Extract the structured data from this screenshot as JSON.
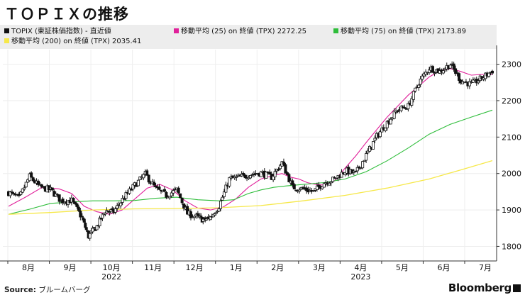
{
  "title": "ＴＯＰＩＸの推移",
  "source_label": "Source:",
  "source_text": "ブルームバーグ",
  "brand": "Bloomberg",
  "colors": {
    "candle_up": "#ffffff",
    "candle_down": "#111111",
    "ma25": "#e0209a",
    "ma75": "#2ebd3a",
    "ma200": "#f6e84a",
    "legend_bg": "#ededed",
    "grid": "#eeeeee",
    "axis": "#333333"
  },
  "chart_data": {
    "type": "line",
    "subtype": "candlestick_with_moving_averages",
    "title": "ＴＯＰＩＸの推移",
    "x_axis": {
      "tick_labels": [
        "8月",
        "9月",
        "10月",
        "11月",
        "12月",
        "1月",
        "2月",
        "3月",
        "4月",
        "5月",
        "6月",
        "7月"
      ],
      "year_labels": [
        "2022",
        "2023"
      ]
    },
    "y_axis": {
      "side": "right",
      "ylim": [
        1760,
        2340
      ],
      "ticks": [
        1800,
        1900,
        2000,
        2100,
        2200,
        2300
      ]
    },
    "grid": true,
    "legend_position": "top",
    "series": [
      {
        "name": "TOPIX (東証株価指数) - 直近値",
        "kind": "candlestick",
        "color": "#111111",
        "points": [
          [
            0.0,
            1948
          ],
          [
            0.5,
            1932
          ],
          [
            1.0,
            1992
          ],
          [
            1.5,
            1962
          ],
          [
            2.0,
            1955
          ],
          [
            2.5,
            1925
          ],
          [
            3.0,
            1926
          ],
          [
            3.5,
            1878
          ],
          [
            3.8,
            1828
          ],
          [
            4.2,
            1855
          ],
          [
            4.6,
            1898
          ],
          [
            5.0,
            1895
          ],
          [
            5.5,
            1935
          ],
          [
            6.0,
            1968
          ],
          [
            6.5,
            1998
          ],
          [
            7.0,
            1958
          ],
          [
            7.5,
            1940
          ],
          [
            8.0,
            1955
          ],
          [
            8.5,
            1890
          ],
          [
            9.0,
            1880
          ],
          [
            9.3,
            1872
          ],
          [
            9.6,
            1880
          ],
          [
            10.0,
            1910
          ],
          [
            10.5,
            1985
          ],
          [
            11.0,
            1990
          ],
          [
            11.5,
            1998
          ],
          [
            12.0,
            2002
          ],
          [
            12.5,
            1990
          ],
          [
            13.0,
            2030
          ],
          [
            13.5,
            1962
          ],
          [
            14.0,
            1958
          ],
          [
            14.5,
            1950
          ],
          [
            15.0,
            1975
          ],
          [
            15.5,
            1985
          ],
          [
            16.0,
            2008
          ],
          [
            16.5,
            2000
          ],
          [
            17.0,
            2050
          ],
          [
            17.5,
            2102
          ],
          [
            18.0,
            2140
          ],
          [
            18.5,
            2175
          ],
          [
            19.0,
            2185
          ],
          [
            19.5,
            2250
          ],
          [
            20.0,
            2290
          ],
          [
            20.5,
            2280
          ],
          [
            21.0,
            2300
          ],
          [
            21.5,
            2255
          ],
          [
            22.0,
            2245
          ],
          [
            22.5,
            2262
          ],
          [
            23.0,
            2282
          ]
        ]
      },
      {
        "name": "移動平均 (25)  on 終値 (TPX)",
        "value": "2272.25",
        "kind": "line",
        "color": "#e0209a",
        "points": [
          [
            0.0,
            1910
          ],
          [
            0.8,
            1935
          ],
          [
            1.6,
            1962
          ],
          [
            2.4,
            1958
          ],
          [
            3.0,
            1945
          ],
          [
            3.6,
            1910
          ],
          [
            4.2,
            1895
          ],
          [
            4.8,
            1888
          ],
          [
            5.4,
            1900
          ],
          [
            6.0,
            1930
          ],
          [
            6.6,
            1960
          ],
          [
            7.2,
            1970
          ],
          [
            7.8,
            1955
          ],
          [
            8.4,
            1925
          ],
          [
            9.0,
            1905
          ],
          [
            9.6,
            1900
          ],
          [
            10.2,
            1908
          ],
          [
            10.8,
            1930
          ],
          [
            11.4,
            1962
          ],
          [
            12.0,
            1985
          ],
          [
            12.6,
            1995
          ],
          [
            13.0,
            2000
          ],
          [
            13.4,
            1990
          ],
          [
            13.8,
            1985
          ],
          [
            14.2,
            1975
          ],
          [
            14.6,
            1970
          ],
          [
            15.0,
            1968
          ],
          [
            15.5,
            1980
          ],
          [
            16.0,
            2015
          ],
          [
            16.5,
            2048
          ],
          [
            17.0,
            2085
          ],
          [
            17.5,
            2120
          ],
          [
            18.0,
            2155
          ],
          [
            18.5,
            2185
          ],
          [
            19.0,
            2215
          ],
          [
            19.5,
            2240
          ],
          [
            20.0,
            2265
          ],
          [
            20.5,
            2282
          ],
          [
            21.0,
            2288
          ],
          [
            21.5,
            2280
          ],
          [
            22.0,
            2270
          ],
          [
            22.5,
            2272
          ],
          [
            23.0,
            2272.25
          ]
        ]
      },
      {
        "name": "移動平均 (75)  on 終値 (TPX)",
        "value": "2173.89",
        "kind": "line",
        "color": "#2ebd3a",
        "points": [
          [
            0.0,
            1888
          ],
          [
            1.0,
            1902
          ],
          [
            2.0,
            1918
          ],
          [
            3.0,
            1922
          ],
          [
            4.0,
            1925
          ],
          [
            5.0,
            1925
          ],
          [
            6.0,
            1926
          ],
          [
            7.0,
            1932
          ],
          [
            8.0,
            1935
          ],
          [
            9.0,
            1928
          ],
          [
            10.0,
            1925
          ],
          [
            10.7,
            1928
          ],
          [
            11.4,
            1945
          ],
          [
            12.0,
            1955
          ],
          [
            12.6,
            1962
          ],
          [
            13.2,
            1966
          ],
          [
            14.0,
            1970
          ],
          [
            15.0,
            1975
          ],
          [
            16.0,
            1985
          ],
          [
            17.0,
            2005
          ],
          [
            18.0,
            2035
          ],
          [
            19.0,
            2070
          ],
          [
            20.0,
            2108
          ],
          [
            21.0,
            2135
          ],
          [
            22.0,
            2155
          ],
          [
            23.0,
            2173.89
          ]
        ]
      },
      {
        "name": "移動平均 (200)  on 終値 (TPX)",
        "value": "2035.41",
        "kind": "line",
        "color": "#f6e84a",
        "points": [
          [
            0.0,
            1888
          ],
          [
            2.0,
            1893
          ],
          [
            4.0,
            1900
          ],
          [
            6.0,
            1903
          ],
          [
            8.0,
            1904
          ],
          [
            10.0,
            1906
          ],
          [
            12.0,
            1912
          ],
          [
            14.0,
            1925
          ],
          [
            16.0,
            1940
          ],
          [
            18.0,
            1960
          ],
          [
            20.0,
            1985
          ],
          [
            21.5,
            2010
          ],
          [
            23.0,
            2035.41
          ]
        ]
      }
    ]
  }
}
